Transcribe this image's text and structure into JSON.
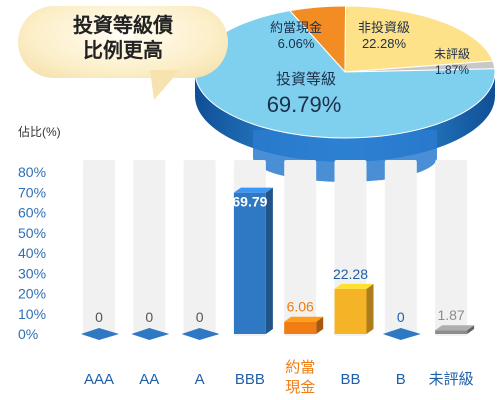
{
  "callout": {
    "line1": "投資等級債",
    "line2": "比例更高"
  },
  "colors": {
    "blue": "#2f78c4",
    "orange": "#f07d14",
    "gold": "#f5b327",
    "gray": "#8c8c8c",
    "pie_blue": "#7fd0ee",
    "pie_orange": "#f28c23",
    "pie_yellow": "#fde28a",
    "pie_gray": "#c8c8c8",
    "axis_text": "#2f6fb5",
    "track": "#f1f1f1"
  },
  "chart_data": [
    {
      "type": "pie",
      "slices": [
        {
          "label": "投資等級",
          "value": 69.79,
          "value_label": "69.79%",
          "color": "#7fd0ee"
        },
        {
          "label": "約當現金",
          "value": 6.06,
          "value_label": "6.06%",
          "color": "#f28c23"
        },
        {
          "label": "非投資級",
          "value": 22.28,
          "value_label": "22.28%",
          "color": "#fde28a"
        },
        {
          "label": "未評級",
          "value": 1.87,
          "value_label": "1.87%",
          "color": "#c8c8c8"
        }
      ]
    },
    {
      "type": "bar",
      "ylabel": "佔比(%)",
      "ylim": [
        0,
        80
      ],
      "yticks": [
        "0%",
        "10%",
        "20%",
        "30%",
        "40%",
        "50%",
        "60%",
        "70%",
        "80%"
      ],
      "categories": [
        "AAA",
        "AA",
        "A",
        "BBB",
        "約當現金",
        "BB",
        "B",
        "未評級"
      ],
      "category_lines": [
        [
          "AAA"
        ],
        [
          "AA"
        ],
        [
          "A"
        ],
        [
          "BBB"
        ],
        [
          "約當",
          "現金"
        ],
        [
          "BB"
        ],
        [
          "B"
        ],
        [
          "未評級"
        ]
      ],
      "values": [
        0,
        0,
        0,
        69.79,
        6.06,
        22.28,
        0,
        1.87
      ],
      "value_labels": [
        "0",
        "0",
        "0",
        "69.79",
        "6.06",
        "22.28",
        "0",
        "1.87"
      ],
      "bar_colors": [
        "#2f78c4",
        "#2f78c4",
        "#2f78c4",
        "#2f78c4",
        "#f07d14",
        "#f5b327",
        "#2f78c4",
        "#8c8c8c"
      ],
      "label_colors": [
        "#555555",
        "#555555",
        "#555555",
        "#ffffff",
        "#f07d14",
        "#1f5fa8",
        "#1f5fa8",
        "#8c8c8c"
      ],
      "category_colors": [
        "#1f5fa8",
        "#1f5fa8",
        "#1f5fa8",
        "#1f5fa8",
        "#f07d14",
        "#1f5fa8",
        "#1f5fa8",
        "#1f5fa8"
      ]
    }
  ]
}
